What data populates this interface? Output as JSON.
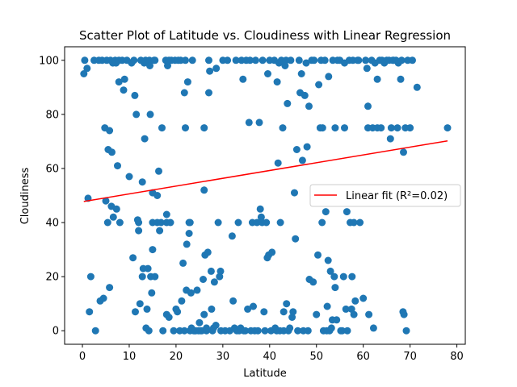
{
  "chart_data": {
    "type": "scatter",
    "title": "Scatter Plot of Latitude vs. Cloudiness with Linear Regression",
    "xlabel": "Latitude",
    "ylabel": "Cloudiness",
    "xlim": [
      -3.8,
      81.8
    ],
    "ylim": [
      -5,
      105
    ],
    "xticks": [
      0,
      10,
      20,
      30,
      40,
      50,
      60,
      70,
      80
    ],
    "yticks": [
      0,
      20,
      40,
      60,
      80,
      100
    ],
    "grid": false,
    "legend_position": "center-right",
    "series": [
      {
        "type": "scatter",
        "color": "#1f77b4",
        "points": [
          [
            0.3,
            95
          ],
          [
            0.5,
            100
          ],
          [
            1,
            97
          ],
          [
            1.2,
            49
          ],
          [
            1.5,
            7
          ],
          [
            1.8,
            20
          ],
          [
            2.5,
            100
          ],
          [
            2.8,
            0
          ],
          [
            3.5,
            100
          ],
          [
            3.8,
            11
          ],
          [
            4.2,
            100
          ],
          [
            4.5,
            12
          ],
          [
            4.8,
            75
          ],
          [
            5,
            48
          ],
          [
            5.2,
            100
          ],
          [
            5.4,
            40
          ],
          [
            5.5,
            67
          ],
          [
            5.8,
            74
          ],
          [
            5.8,
            16
          ],
          [
            6,
            100
          ],
          [
            6.2,
            46
          ],
          [
            6.3,
            66
          ],
          [
            6.5,
            99
          ],
          [
            6.6,
            42
          ],
          [
            7,
            100
          ],
          [
            7.2,
            99
          ],
          [
            7.3,
            45
          ],
          [
            7.5,
            61
          ],
          [
            7.8,
            100
          ],
          [
            7.8,
            92
          ],
          [
            8,
            40
          ],
          [
            8.5,
            100
          ],
          [
            8.8,
            89
          ],
          [
            9,
            93
          ],
          [
            9.5,
            100
          ],
          [
            10,
            57
          ],
          [
            10.5,
            99
          ],
          [
            10.8,
            27
          ],
          [
            11,
            100
          ],
          [
            11.2,
            87
          ],
          [
            11.3,
            7
          ],
          [
            11.5,
            80
          ],
          [
            11.8,
            41
          ],
          [
            12,
            40
          ],
          [
            12,
            37
          ],
          [
            12.3,
            10
          ],
          [
            12.5,
            100
          ],
          [
            12.8,
            20
          ],
          [
            12.8,
            55
          ],
          [
            13,
            23
          ],
          [
            13.2,
            99
          ],
          [
            13.3,
            71
          ],
          [
            13.5,
            100
          ],
          [
            13.6,
            1
          ],
          [
            13.8,
            8
          ],
          [
            14,
            23
          ],
          [
            14.2,
            0
          ],
          [
            14.3,
            100
          ],
          [
            14.4,
            98
          ],
          [
            14.5,
            80
          ],
          [
            14.6,
            20
          ],
          [
            14.8,
            14
          ],
          [
            15,
            30
          ],
          [
            15,
            51
          ],
          [
            15,
            40
          ],
          [
            15.3,
            100
          ],
          [
            15.5,
            100
          ],
          [
            15.5,
            20
          ],
          [
            16,
            40
          ],
          [
            16,
            50
          ],
          [
            16.3,
            59
          ],
          [
            16.5,
            37
          ],
          [
            16.8,
            40
          ],
          [
            17,
            75
          ],
          [
            17.2,
            0
          ],
          [
            17.8,
            100
          ],
          [
            18,
            40
          ],
          [
            18,
            43
          ],
          [
            18,
            6
          ],
          [
            18.2,
            98
          ],
          [
            18.5,
            5
          ],
          [
            18.5,
            100
          ],
          [
            18.8,
            40
          ],
          [
            19,
            100
          ],
          [
            19.5,
            0
          ],
          [
            19.8,
            100
          ],
          [
            20,
            8
          ],
          [
            20.3,
            7
          ],
          [
            20.5,
            100
          ],
          [
            20.8,
            0
          ],
          [
            21,
            100
          ],
          [
            21.2,
            11
          ],
          [
            21.5,
            25
          ],
          [
            21.8,
            0
          ],
          [
            21.8,
            88
          ],
          [
            22,
            75
          ],
          [
            22,
            100
          ],
          [
            22.2,
            15
          ],
          [
            22.3,
            32
          ],
          [
            22.5,
            92
          ],
          [
            22.8,
            40
          ],
          [
            22.8,
            36
          ],
          [
            23,
            0
          ],
          [
            23,
            40
          ],
          [
            23.2,
            14
          ],
          [
            23.3,
            1
          ],
          [
            23.5,
            100
          ],
          [
            23.8,
            0
          ],
          [
            24,
            0
          ],
          [
            24.2,
            0
          ],
          [
            24.5,
            15
          ],
          [
            24.8,
            0
          ],
          [
            25,
            3
          ],
          [
            25.2,
            0
          ],
          [
            25.5,
            0
          ],
          [
            25.8,
            19
          ],
          [
            26,
            75
          ],
          [
            26,
            52
          ],
          [
            26,
            6
          ],
          [
            26.2,
            28
          ],
          [
            26.5,
            0
          ],
          [
            26.5,
            1
          ],
          [
            26.8,
            29
          ],
          [
            27,
            88
          ],
          [
            27,
            100
          ],
          [
            27.2,
            96
          ],
          [
            27.5,
            22
          ],
          [
            27.6,
            8
          ],
          [
            27.8,
            0
          ],
          [
            28,
            1
          ],
          [
            28.2,
            18
          ],
          [
            28.5,
            2
          ],
          [
            28.6,
            97
          ],
          [
            29,
            40
          ],
          [
            29.3,
            20
          ],
          [
            29.5,
            22
          ],
          [
            29.6,
            0
          ],
          [
            30,
            100
          ],
          [
            30.5,
            0
          ],
          [
            31,
            100
          ],
          [
            31.5,
            0
          ],
          [
            32,
            35
          ],
          [
            32.2,
            11
          ],
          [
            32.5,
            1
          ],
          [
            32.8,
            100
          ],
          [
            33,
            0
          ],
          [
            33.3,
            40
          ],
          [
            33.5,
            0
          ],
          [
            33.8,
            1
          ],
          [
            34,
            100
          ],
          [
            34.3,
            93
          ],
          [
            34.5,
            0
          ],
          [
            34.8,
            0
          ],
          [
            35,
            100
          ],
          [
            35.3,
            8
          ],
          [
            35.6,
            77
          ],
          [
            35.8,
            100
          ],
          [
            36,
            0
          ],
          [
            36.3,
            40
          ],
          [
            36.5,
            9
          ],
          [
            36.8,
            0
          ],
          [
            37,
            100
          ],
          [
            37.3,
            40
          ],
          [
            37.5,
            0
          ],
          [
            37.8,
            77
          ],
          [
            38,
            45
          ],
          [
            38.2,
            42
          ],
          [
            38.4,
            40
          ],
          [
            38.5,
            100
          ],
          [
            38.8,
            7
          ],
          [
            39,
            0
          ],
          [
            39.3,
            40
          ],
          [
            39.5,
            27
          ],
          [
            39.6,
            95
          ],
          [
            39.8,
            28
          ],
          [
            40,
            100
          ],
          [
            40.3,
            0
          ],
          [
            40.5,
            29
          ],
          [
            41,
            100
          ],
          [
            41.2,
            1
          ],
          [
            41.5,
            0
          ],
          [
            41.6,
            92
          ],
          [
            41.8,
            62
          ],
          [
            42,
            99
          ],
          [
            42.2,
            0
          ],
          [
            42.3,
            40
          ],
          [
            42.5,
            100
          ],
          [
            42.8,
            75
          ],
          [
            43,
            0
          ],
          [
            43,
            7
          ],
          [
            43.3,
            98
          ],
          [
            43.5,
            100
          ],
          [
            43.6,
            10
          ],
          [
            43.8,
            84
          ],
          [
            44,
            0
          ],
          [
            44.3,
            1
          ],
          [
            44.5,
            100
          ],
          [
            44.8,
            5
          ],
          [
            45,
            7
          ],
          [
            45.3,
            51
          ],
          [
            45.5,
            34
          ],
          [
            45.8,
            67
          ],
          [
            46,
            0
          ],
          [
            46.3,
            100
          ],
          [
            46.5,
            88
          ],
          [
            46.8,
            95
          ],
          [
            47,
            63
          ],
          [
            47.2,
            0
          ],
          [
            47.5,
            87
          ],
          [
            47.8,
            99
          ],
          [
            48,
            68
          ],
          [
            48.2,
            0
          ],
          [
            48.4,
            83
          ],
          [
            48.5,
            19
          ],
          [
            49,
            100
          ],
          [
            49.3,
            18
          ],
          [
            49.5,
            100
          ],
          [
            50,
            6
          ],
          [
            50.3,
            28
          ],
          [
            50.5,
            91
          ],
          [
            50.8,
            75
          ],
          [
            51,
            100
          ],
          [
            51.2,
            40
          ],
          [
            51.3,
            75
          ],
          [
            51.5,
            0
          ],
          [
            51.8,
            100
          ],
          [
            52,
            44
          ],
          [
            52.2,
            0
          ],
          [
            52.3,
            9
          ],
          [
            52.5,
            26
          ],
          [
            52.6,
            94
          ],
          [
            52.8,
            0
          ],
          [
            53,
            22
          ],
          [
            53.2,
            1
          ],
          [
            53.4,
            4
          ],
          [
            53.5,
            100
          ],
          [
            53.8,
            20
          ],
          [
            54,
            16
          ],
          [
            54,
            75
          ],
          [
            54.3,
            4
          ],
          [
            54.5,
            100
          ],
          [
            55,
            100
          ],
          [
            55.2,
            0
          ],
          [
            55.5,
            0
          ],
          [
            55.8,
            20
          ],
          [
            56,
            99
          ],
          [
            56,
            75
          ],
          [
            56.3,
            8
          ],
          [
            56.5,
            44
          ],
          [
            56.6,
            0
          ],
          [
            57,
            100
          ],
          [
            57.2,
            40
          ],
          [
            57.5,
            8
          ],
          [
            57.6,
            20
          ],
          [
            57.8,
            100
          ],
          [
            58,
            6
          ],
          [
            58,
            40
          ],
          [
            58.3,
            11
          ],
          [
            58.8,
            100
          ],
          [
            59,
            100
          ],
          [
            59.3,
            40
          ],
          [
            60,
            12
          ],
          [
            60.5,
            100
          ],
          [
            60.8,
            97
          ],
          [
            61,
            83
          ],
          [
            61,
            75
          ],
          [
            61.2,
            6
          ],
          [
            61.8,
            100
          ],
          [
            62,
            75
          ],
          [
            62.2,
            1
          ],
          [
            62.5,
            99
          ],
          [
            63,
            75
          ],
          [
            63,
            93
          ],
          [
            63.5,
            100
          ],
          [
            63.8,
            75
          ],
          [
            64,
            100
          ],
          [
            64.5,
            99
          ],
          [
            65,
            100
          ],
          [
            65.5,
            100
          ],
          [
            65.8,
            71
          ],
          [
            66,
            75
          ],
          [
            66.3,
            100
          ],
          [
            66.5,
            100
          ],
          [
            67,
            100
          ],
          [
            67.3,
            75
          ],
          [
            67.5,
            99
          ],
          [
            68,
            93
          ],
          [
            68.2,
            100
          ],
          [
            68.5,
            7
          ],
          [
            68.6,
            66
          ],
          [
            68.7,
            6
          ],
          [
            69,
            75
          ],
          [
            69.2,
            0
          ],
          [
            69.5,
            100
          ],
          [
            70,
            75
          ],
          [
            70.5,
            100
          ],
          [
            71.5,
            90
          ],
          [
            78,
            75
          ]
        ]
      }
    ],
    "regression": {
      "label": "Linear fit (R²=0.02)",
      "color": "#ff0000",
      "x_start": 0.3,
      "x_end": 78,
      "y_start": 47.8,
      "y_end": 70.2
    }
  }
}
